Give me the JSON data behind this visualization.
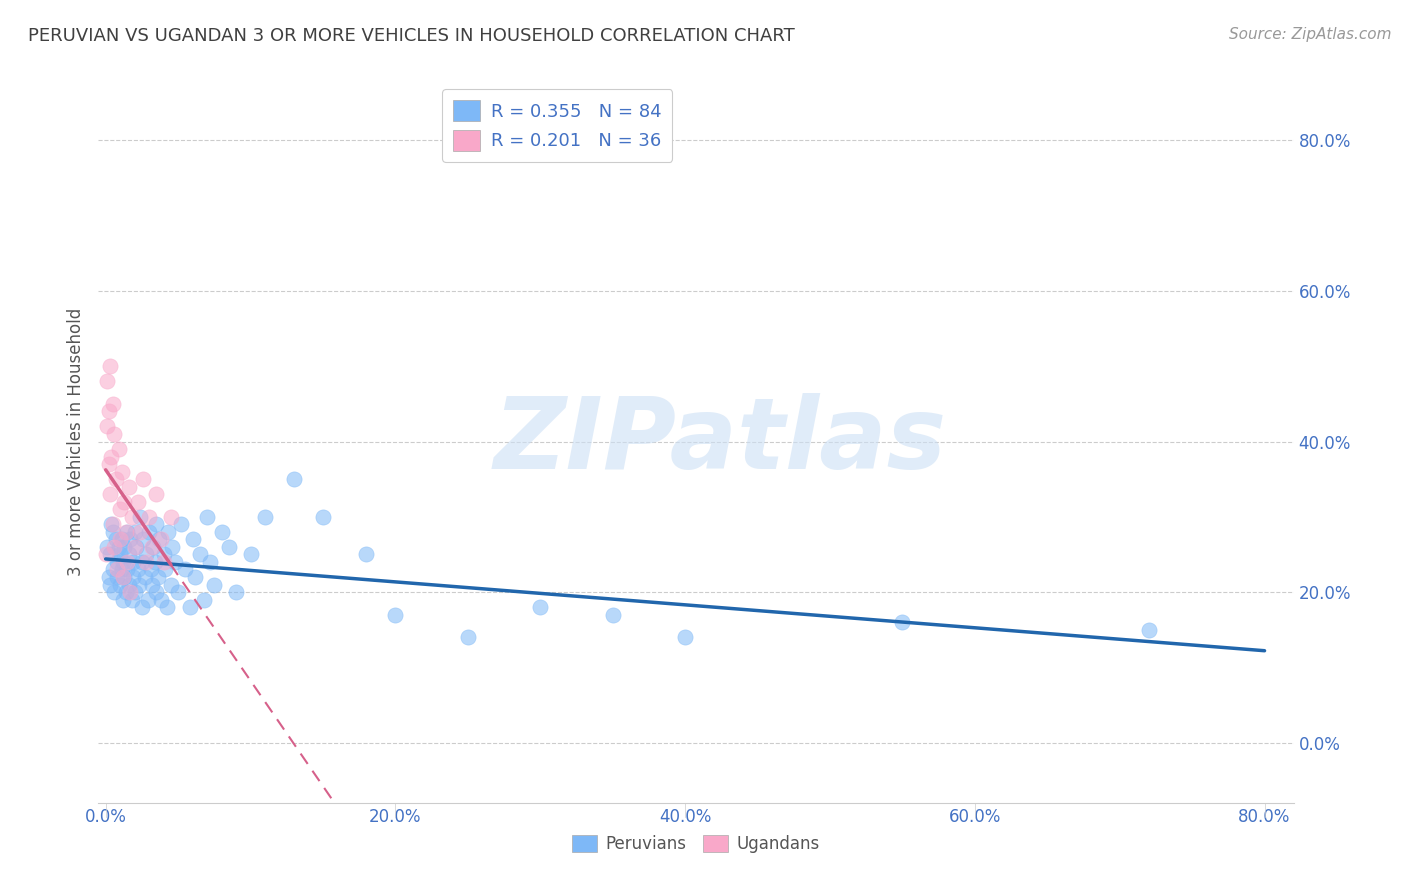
{
  "title": "PERUVIAN VS UGANDAN 3 OR MORE VEHICLES IN HOUSEHOLD CORRELATION CHART",
  "source": "Source: ZipAtlas.com",
  "xlabel_label": "Peruvians",
  "ylabel_label": "3 or more Vehicles in Household",
  "x_tick_labels": [
    "0.0%",
    "20.0%",
    "40.0%",
    "60.0%",
    "80.0%"
  ],
  "y_tick_labels": [
    "0.0%",
    "20.0%",
    "40.0%",
    "60.0%",
    "80.0%"
  ],
  "xlim": [
    -0.005,
    0.82
  ],
  "ylim": [
    -0.08,
    0.88
  ],
  "peruvian_color": "#7eb8f7",
  "peruvian_line_color": "#2166ac",
  "ugandan_color": "#f9a8c9",
  "ugandan_line_color": "#d6608a",
  "peruvian_R": 0.355,
  "peruvian_N": 84,
  "ugandan_R": 0.201,
  "ugandan_N": 36,
  "legend_label_1": "R = 0.355   N = 84",
  "legend_label_2": "R = 0.201   N = 36",
  "watermark": "ZIPatlas",
  "background_color": "#ffffff",
  "grid_color": "#cccccc",
  "title_color": "#404040",
  "source_color": "#999999",
  "scatter_alpha": 0.55,
  "scatter_size": 120,
  "peruvian_x": [
    0.001,
    0.002,
    0.003,
    0.003,
    0.004,
    0.005,
    0.005,
    0.006,
    0.007,
    0.008,
    0.008,
    0.009,
    0.01,
    0.01,
    0.011,
    0.011,
    0.012,
    0.012,
    0.013,
    0.013,
    0.014,
    0.015,
    0.015,
    0.016,
    0.016,
    0.017,
    0.018,
    0.019,
    0.019,
    0.02,
    0.02,
    0.021,
    0.022,
    0.023,
    0.024,
    0.025,
    0.025,
    0.026,
    0.027,
    0.028,
    0.029,
    0.03,
    0.031,
    0.032,
    0.033,
    0.034,
    0.035,
    0.035,
    0.036,
    0.037,
    0.038,
    0.04,
    0.041,
    0.042,
    0.043,
    0.045,
    0.046,
    0.048,
    0.05,
    0.052,
    0.055,
    0.058,
    0.06,
    0.062,
    0.065,
    0.068,
    0.07,
    0.072,
    0.075,
    0.08,
    0.085,
    0.09,
    0.1,
    0.11,
    0.13,
    0.15,
    0.18,
    0.2,
    0.25,
    0.3,
    0.35,
    0.4,
    0.55,
    0.72
  ],
  "peruvian_y": [
    0.26,
    0.22,
    0.25,
    0.21,
    0.29,
    0.23,
    0.28,
    0.2,
    0.27,
    0.24,
    0.22,
    0.26,
    0.21,
    0.25,
    0.23,
    0.27,
    0.19,
    0.24,
    0.22,
    0.26,
    0.2,
    0.28,
    0.23,
    0.21,
    0.25,
    0.27,
    0.19,
    0.24,
    0.22,
    0.28,
    0.2,
    0.26,
    0.23,
    0.21,
    0.3,
    0.24,
    0.18,
    0.27,
    0.22,
    0.25,
    0.19,
    0.28,
    0.23,
    0.21,
    0.26,
    0.24,
    0.2,
    0.29,
    0.22,
    0.27,
    0.19,
    0.25,
    0.23,
    0.18,
    0.28,
    0.21,
    0.26,
    0.24,
    0.2,
    0.29,
    0.23,
    0.18,
    0.27,
    0.22,
    0.25,
    0.19,
    0.3,
    0.24,
    0.21,
    0.28,
    0.26,
    0.2,
    0.25,
    0.3,
    0.35,
    0.3,
    0.25,
    0.17,
    0.14,
    0.18,
    0.17,
    0.14,
    0.16,
    0.15
  ],
  "ugandan_x": [
    0.0,
    0.001,
    0.001,
    0.002,
    0.002,
    0.003,
    0.003,
    0.004,
    0.005,
    0.005,
    0.006,
    0.006,
    0.007,
    0.008,
    0.009,
    0.01,
    0.01,
    0.011,
    0.012,
    0.013,
    0.014,
    0.015,
    0.016,
    0.017,
    0.018,
    0.02,
    0.022,
    0.024,
    0.026,
    0.028,
    0.03,
    0.032,
    0.035,
    0.038,
    0.04,
    0.045
  ],
  "ugandan_y": [
    0.25,
    0.48,
    0.42,
    0.37,
    0.44,
    0.33,
    0.5,
    0.38,
    0.29,
    0.45,
    0.26,
    0.41,
    0.35,
    0.23,
    0.39,
    0.31,
    0.27,
    0.36,
    0.22,
    0.32,
    0.28,
    0.24,
    0.34,
    0.2,
    0.3,
    0.26,
    0.32,
    0.28,
    0.35,
    0.24,
    0.3,
    0.26,
    0.33,
    0.27,
    0.24,
    0.3
  ]
}
